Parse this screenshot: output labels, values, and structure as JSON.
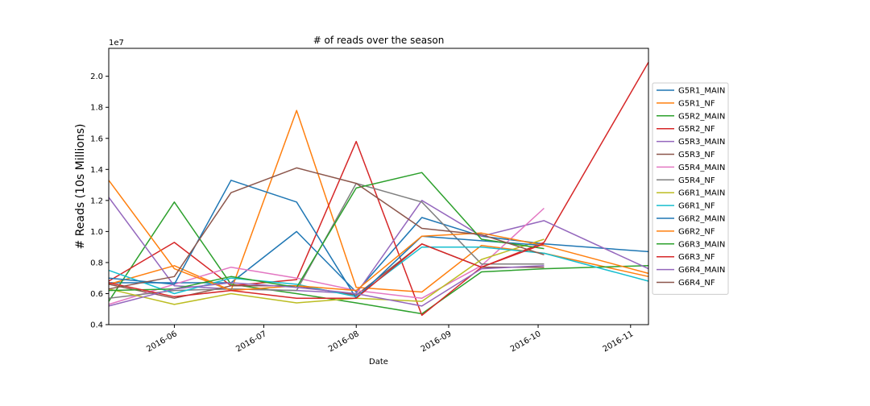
{
  "chart_data": {
    "type": "line",
    "title": "# of reads over the season",
    "xlabel": "Date",
    "ylabel": "# Reads (10s Millions)",
    "y_multiplier_label": "1e7",
    "xlim": [
      "2016-05-10",
      "2016-11-07"
    ],
    "ylim": [
      0.4,
      2.18
    ],
    "x_ticks": [
      "2016-06",
      "2016-07",
      "2016-08",
      "2016-09",
      "2016-10",
      "2016-11"
    ],
    "y_ticks": [
      "0.4",
      "0.6",
      "0.8",
      "1.0",
      "1.2",
      "1.4",
      "1.6",
      "1.8",
      "2.0"
    ],
    "legend_position": "right",
    "x": [
      "2016-05-10",
      "2016-06-01",
      "2016-06-20",
      "2016-07-12",
      "2016-08-01",
      "2016-08-23",
      "2016-09-12",
      "2016-10-03",
      "2016-11-07"
    ],
    "series": [
      {
        "name": "G5R1_MAIN",
        "color": "#1f77b4",
        "values": [
          0.67,
          0.67,
          0.67,
          1.0,
          0.61,
          1.09,
          0.97,
          0.92,
          0.87
        ]
      },
      {
        "name": "G5R1_NF",
        "color": "#ff7f0e",
        "values": [
          0.66,
          0.78,
          0.62,
          1.78,
          0.64,
          0.61,
          0.91,
          0.86,
          0.71
        ]
      },
      {
        "name": "G5R2_MAIN",
        "color": "#2ca02c",
        "values": [
          0.55,
          1.19,
          0.66,
          0.6,
          0.54,
          0.47,
          0.74,
          0.76,
          0.78
        ]
      },
      {
        "name": "G5R2_NF",
        "color": "#d62728",
        "values": [
          0.68,
          0.93,
          0.65,
          0.69,
          1.58,
          0.46,
          0.77,
          0.93,
          2.09
        ]
      },
      {
        "name": "G5R3_MAIN",
        "color": "#9467bd",
        "values": [
          1.22,
          0.65,
          0.63,
          0.62,
          0.6,
          1.2,
          0.97,
          1.07,
          0.76
        ]
      },
      {
        "name": "G5R3_NF",
        "color": "#8c564b",
        "values": [
          0.66,
          0.57,
          0.65,
          0.65,
          0.59,
          0.92,
          0.77,
          0.77,
          null
        ]
      },
      {
        "name": "G5R4_MAIN",
        "color": "#e377c2",
        "values": [
          0.53,
          0.66,
          0.77,
          0.7,
          0.62,
          0.57,
          0.78,
          1.15,
          null
        ]
      },
      {
        "name": "G5R4_NF",
        "color": "#7f7f7f",
        "values": [
          0.57,
          0.62,
          0.63,
          0.62,
          1.31,
          1.19,
          0.79,
          0.79,
          null
        ]
      },
      {
        "name": "G6R1_MAIN",
        "color": "#bcbd22",
        "values": [
          0.63,
          0.53,
          0.6,
          0.54,
          0.57,
          0.55,
          0.82,
          0.95,
          null
        ]
      },
      {
        "name": "G6R1_NF",
        "color": "#17becf",
        "values": [
          0.75,
          0.6,
          0.7,
          0.66,
          0.58,
          0.9,
          0.9,
          0.86,
          0.68
        ]
      },
      {
        "name": "G6R2_MAIN",
        "color": "#1f77b4",
        "values": [
          0.7,
          0.66,
          1.33,
          1.19,
          0.57,
          0.97,
          0.94,
          0.91,
          null
        ]
      },
      {
        "name": "G6R2_NF",
        "color": "#ff7f0e",
        "values": [
          1.33,
          0.76,
          0.62,
          0.65,
          0.62,
          0.97,
          0.99,
          0.91,
          0.73
        ]
      },
      {
        "name": "G6R3_MAIN",
        "color": "#2ca02c",
        "values": [
          0.62,
          0.63,
          0.71,
          0.64,
          1.28,
          1.38,
          0.95,
          0.89,
          null
        ]
      },
      {
        "name": "G6R3_NF",
        "color": "#d62728",
        "values": [
          0.67,
          0.58,
          0.62,
          0.57,
          0.57,
          0.92,
          0.77,
          0.92,
          null
        ]
      },
      {
        "name": "G6R4_MAIN",
        "color": "#9467bd",
        "values": [
          0.52,
          0.63,
          0.67,
          0.64,
          0.6,
          0.52,
          0.76,
          0.78,
          null
        ]
      },
      {
        "name": "G6R4_NF",
        "color": "#8c564b",
        "values": [
          0.63,
          0.71,
          1.25,
          1.41,
          1.31,
          1.02,
          0.98,
          0.85,
          null
        ]
      }
    ]
  }
}
